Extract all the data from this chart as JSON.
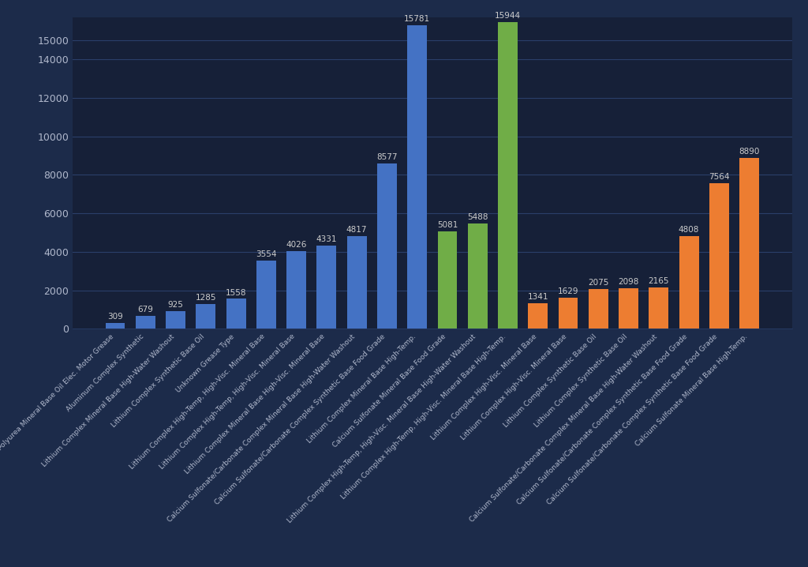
{
  "values": [
    309,
    679,
    925,
    1285,
    1558,
    3554,
    4026,
    4331,
    4817,
    8577,
    15781,
    5081,
    5488,
    15944,
    1341,
    1629,
    2075,
    2098,
    2165,
    4808,
    7564,
    8890
  ],
  "colors": [
    "#4472C4",
    "#4472C4",
    "#4472C4",
    "#4472C4",
    "#4472C4",
    "#4472C4",
    "#4472C4",
    "#4472C4",
    "#4472C4",
    "#4472C4",
    "#4472C4",
    "#70AD47",
    "#70AD47",
    "#70AD47",
    "#ED7D31",
    "#ED7D31",
    "#ED7D31",
    "#ED7D31",
    "#ED7D31",
    "#ED7D31",
    "#ED7D31",
    "#ED7D31"
  ],
  "bar_labels": [
    "309",
    "679",
    "925",
    "1285",
    "1558",
    "3554",
    "4026",
    "4331",
    "4817",
    "8577",
    "15781",
    "5081",
    "5488",
    "15944",
    "1341",
    "1629",
    "2075",
    "2098",
    "2165",
    "4808",
    "7564",
    "8890"
  ],
  "x_labels": [
    "Polyurea Mineral Base Oil Elec. Motor Grease",
    "Aluminum Complex Synthetic",
    "Lithium Complex Mineral Base High-Water Washout",
    "Lithium Complex Synthetic Base Oil",
    "Unknown Grease Type",
    "Lithium Complex High-Temp, High-Visc. Mineral Base",
    "Lithium Complex High-Temp, High-Visc. Mineral Base",
    "Lithium Complex Mineral Base High-Visc. Mineral Base",
    "Calcium Sulfonate/Carbonate Complex Mineral Base High-Water Washout",
    "Calcium Sulfonate/Carbonate Complex Synthetic Base Food Grade",
    "Lithium Complex Mineral Base High-Temp.",
    "Calcium Sulfonate Mineral Base Food Grade",
    "Lithium Complex High-Temp, High-Visc. Mineral Base High-Water Washout",
    "Lithium Complex High-Temp, High-Visc. Mineral Base High-Temp.",
    "Lithium Complex High-Visc. Mineral Base",
    "Lithium Complex High-Visc. Mineral Base",
    "Lithium Complex Synthetic Base Oil",
    "Lithium Complex Synthetic Base Oil",
    "Calcium Sulfonate/Carbonate Complex Mineral Base High-Water Washout",
    "Calcium Sulfonate/Carbonate Complex Synthetic Base Food Grade",
    "Calcium Sulfonate/Carbonate Complex Synthetic Base Food Grade",
    "Calcium Sulfonate Mineral Base High-Temp."
  ],
  "ylim": [
    0,
    16200
  ],
  "yticks": [
    0,
    2000,
    4000,
    6000,
    8000,
    10000,
    12000,
    14000,
    15000
  ],
  "background_color": "#1C2B4A",
  "plot_bg_color": "#162038",
  "grid_color": "#2a3f6a",
  "text_color": "#b0b8cc",
  "bar_label_color": "#cccccc"
}
